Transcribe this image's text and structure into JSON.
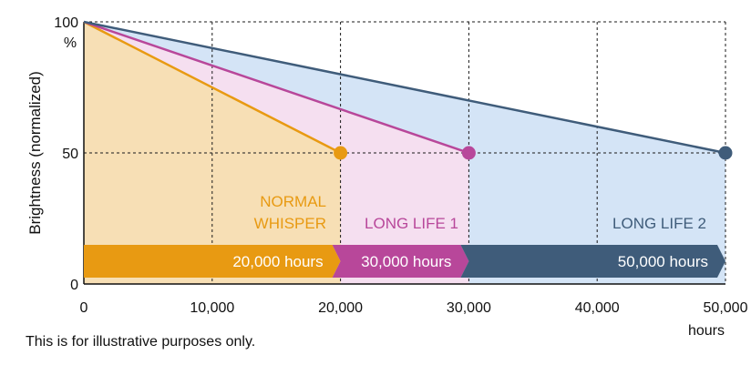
{
  "chart_data": {
    "type": "line",
    "title": "",
    "ylabel": "Brightness (normalized)",
    "xlabel_unit": "hours",
    "y_top_tick_unit": "%",
    "xlim": [
      0,
      50000
    ],
    "ylim": [
      0,
      100
    ],
    "x_ticks": [
      0,
      10000,
      20000,
      30000,
      40000,
      50000
    ],
    "x_tick_labels": [
      "0",
      "10,000",
      "20,000",
      "30,000",
      "40,000",
      "50,000"
    ],
    "y_ticks": [
      0,
      50,
      100
    ],
    "y_tick_labels": [
      "0",
      "50",
      "100"
    ],
    "grid": "dashed",
    "series": [
      {
        "name": "NORMAL WHISPER",
        "label_lines": [
          "NORMAL",
          "WHISPER"
        ],
        "x": [
          0,
          20000
        ],
        "y": [
          100,
          50
        ],
        "color": "#e89a12",
        "fill": "#f7dfb5",
        "bar_label": "20,000 hours"
      },
      {
        "name": "LONG LIFE 1",
        "label_lines": [
          "LONG LIFE 1"
        ],
        "x": [
          0,
          30000
        ],
        "y": [
          100,
          50
        ],
        "color": "#b8479a",
        "fill": "#f5dff0",
        "bar_label": "30,000 hours"
      },
      {
        "name": "LONG LIFE 2",
        "label_lines": [
          "LONG LIFE 2"
        ],
        "x": [
          0,
          50000
        ],
        "y": [
          100,
          50
        ],
        "color": "#3f5c7a",
        "fill": "#d4e4f6",
        "bar_label": "50,000 hours"
      }
    ],
    "footnote": "This is for illustrative purposes only."
  }
}
